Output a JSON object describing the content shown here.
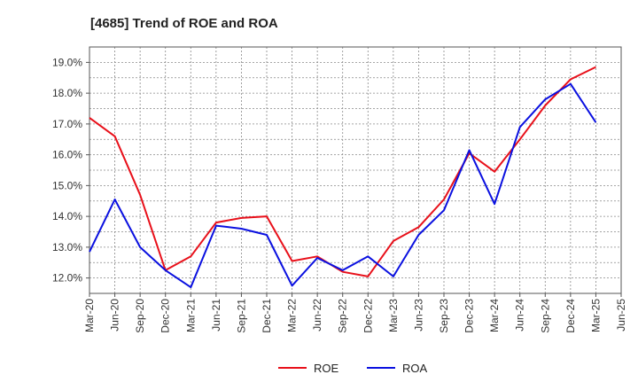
{
  "chart_data": {
    "type": "line",
    "title": "[4685]  Trend of ROE and ROA",
    "xlabel": "",
    "ylabel": "",
    "categories": [
      "Mar-20",
      "Jun-20",
      "Sep-20",
      "Dec-20",
      "Mar-21",
      "Jun-21",
      "Sep-21",
      "Dec-21",
      "Mar-22",
      "Jun-22",
      "Sep-22",
      "Dec-22",
      "Mar-23",
      "Jun-23",
      "Sep-23",
      "Dec-23",
      "Mar-24",
      "Jun-24",
      "Sep-24",
      "Dec-24",
      "Mar-25",
      "Jun-25"
    ],
    "y_ticks": [
      "12.0%",
      "13.0%",
      "14.0%",
      "15.0%",
      "16.0%",
      "17.0%",
      "18.0%",
      "19.0%"
    ],
    "y_tick_values": [
      12,
      13,
      14,
      15,
      16,
      17,
      18,
      19
    ],
    "ylim": [
      11.5,
      19.5
    ],
    "grid": true,
    "legend_position": "bottom",
    "series": [
      {
        "name": "ROE",
        "color": "#e8101a",
        "values": [
          17.2,
          16.6,
          14.7,
          12.25,
          12.7,
          13.8,
          13.95,
          14.0,
          12.55,
          12.7,
          12.2,
          12.05,
          13.2,
          13.65,
          14.55,
          16.05,
          15.45,
          16.5,
          17.6,
          18.45,
          18.85,
          null
        ]
      },
      {
        "name": "ROA",
        "color": "#0a10e0",
        "values": [
          12.85,
          14.55,
          13.0,
          12.25,
          11.7,
          13.7,
          13.6,
          13.4,
          11.75,
          12.65,
          12.25,
          12.7,
          12.05,
          13.4,
          14.2,
          16.15,
          14.4,
          16.9,
          17.8,
          18.3,
          17.05,
          null
        ]
      }
    ]
  }
}
